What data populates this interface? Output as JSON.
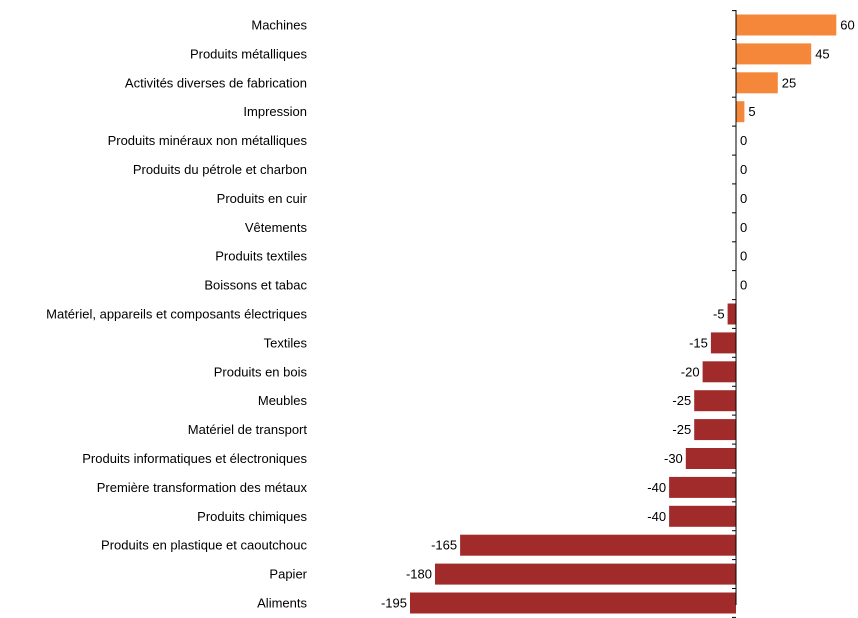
{
  "chart_data": {
    "type": "bar",
    "orientation": "horizontal",
    "categories": [
      "Machines",
      "Produits métalliques",
      "Activités diverses de fabrication",
      "Impression",
      "Produits minéraux non métalliques",
      "Produits du pétrole et charbon",
      "Produits en cuir",
      "Vêtements",
      "Produits textiles",
      "Boissons et tabac",
      "Matériel, appareils et composants électriques",
      "Textiles",
      "Produits en bois",
      "Meubles",
      "Matériel de transport",
      "Produits informatiques et électroniques",
      "Première transformation des métaux",
      "Produits chimiques",
      "Produits en plastique et caoutchouc",
      "Papier",
      "Aliments"
    ],
    "values": [
      60,
      45,
      25,
      5,
      0,
      0,
      0,
      0,
      0,
      0,
      -5,
      -15,
      -20,
      -25,
      -25,
      -30,
      -40,
      -40,
      -165,
      -180,
      -195
    ],
    "title": "",
    "xlabel": "",
    "ylabel": "",
    "xlim": [
      -195,
      60
    ],
    "grid": false,
    "legend": "none",
    "colors": {
      "positive": "#f5873a",
      "negative": "#a12b2b",
      "axis": "#000000"
    }
  }
}
